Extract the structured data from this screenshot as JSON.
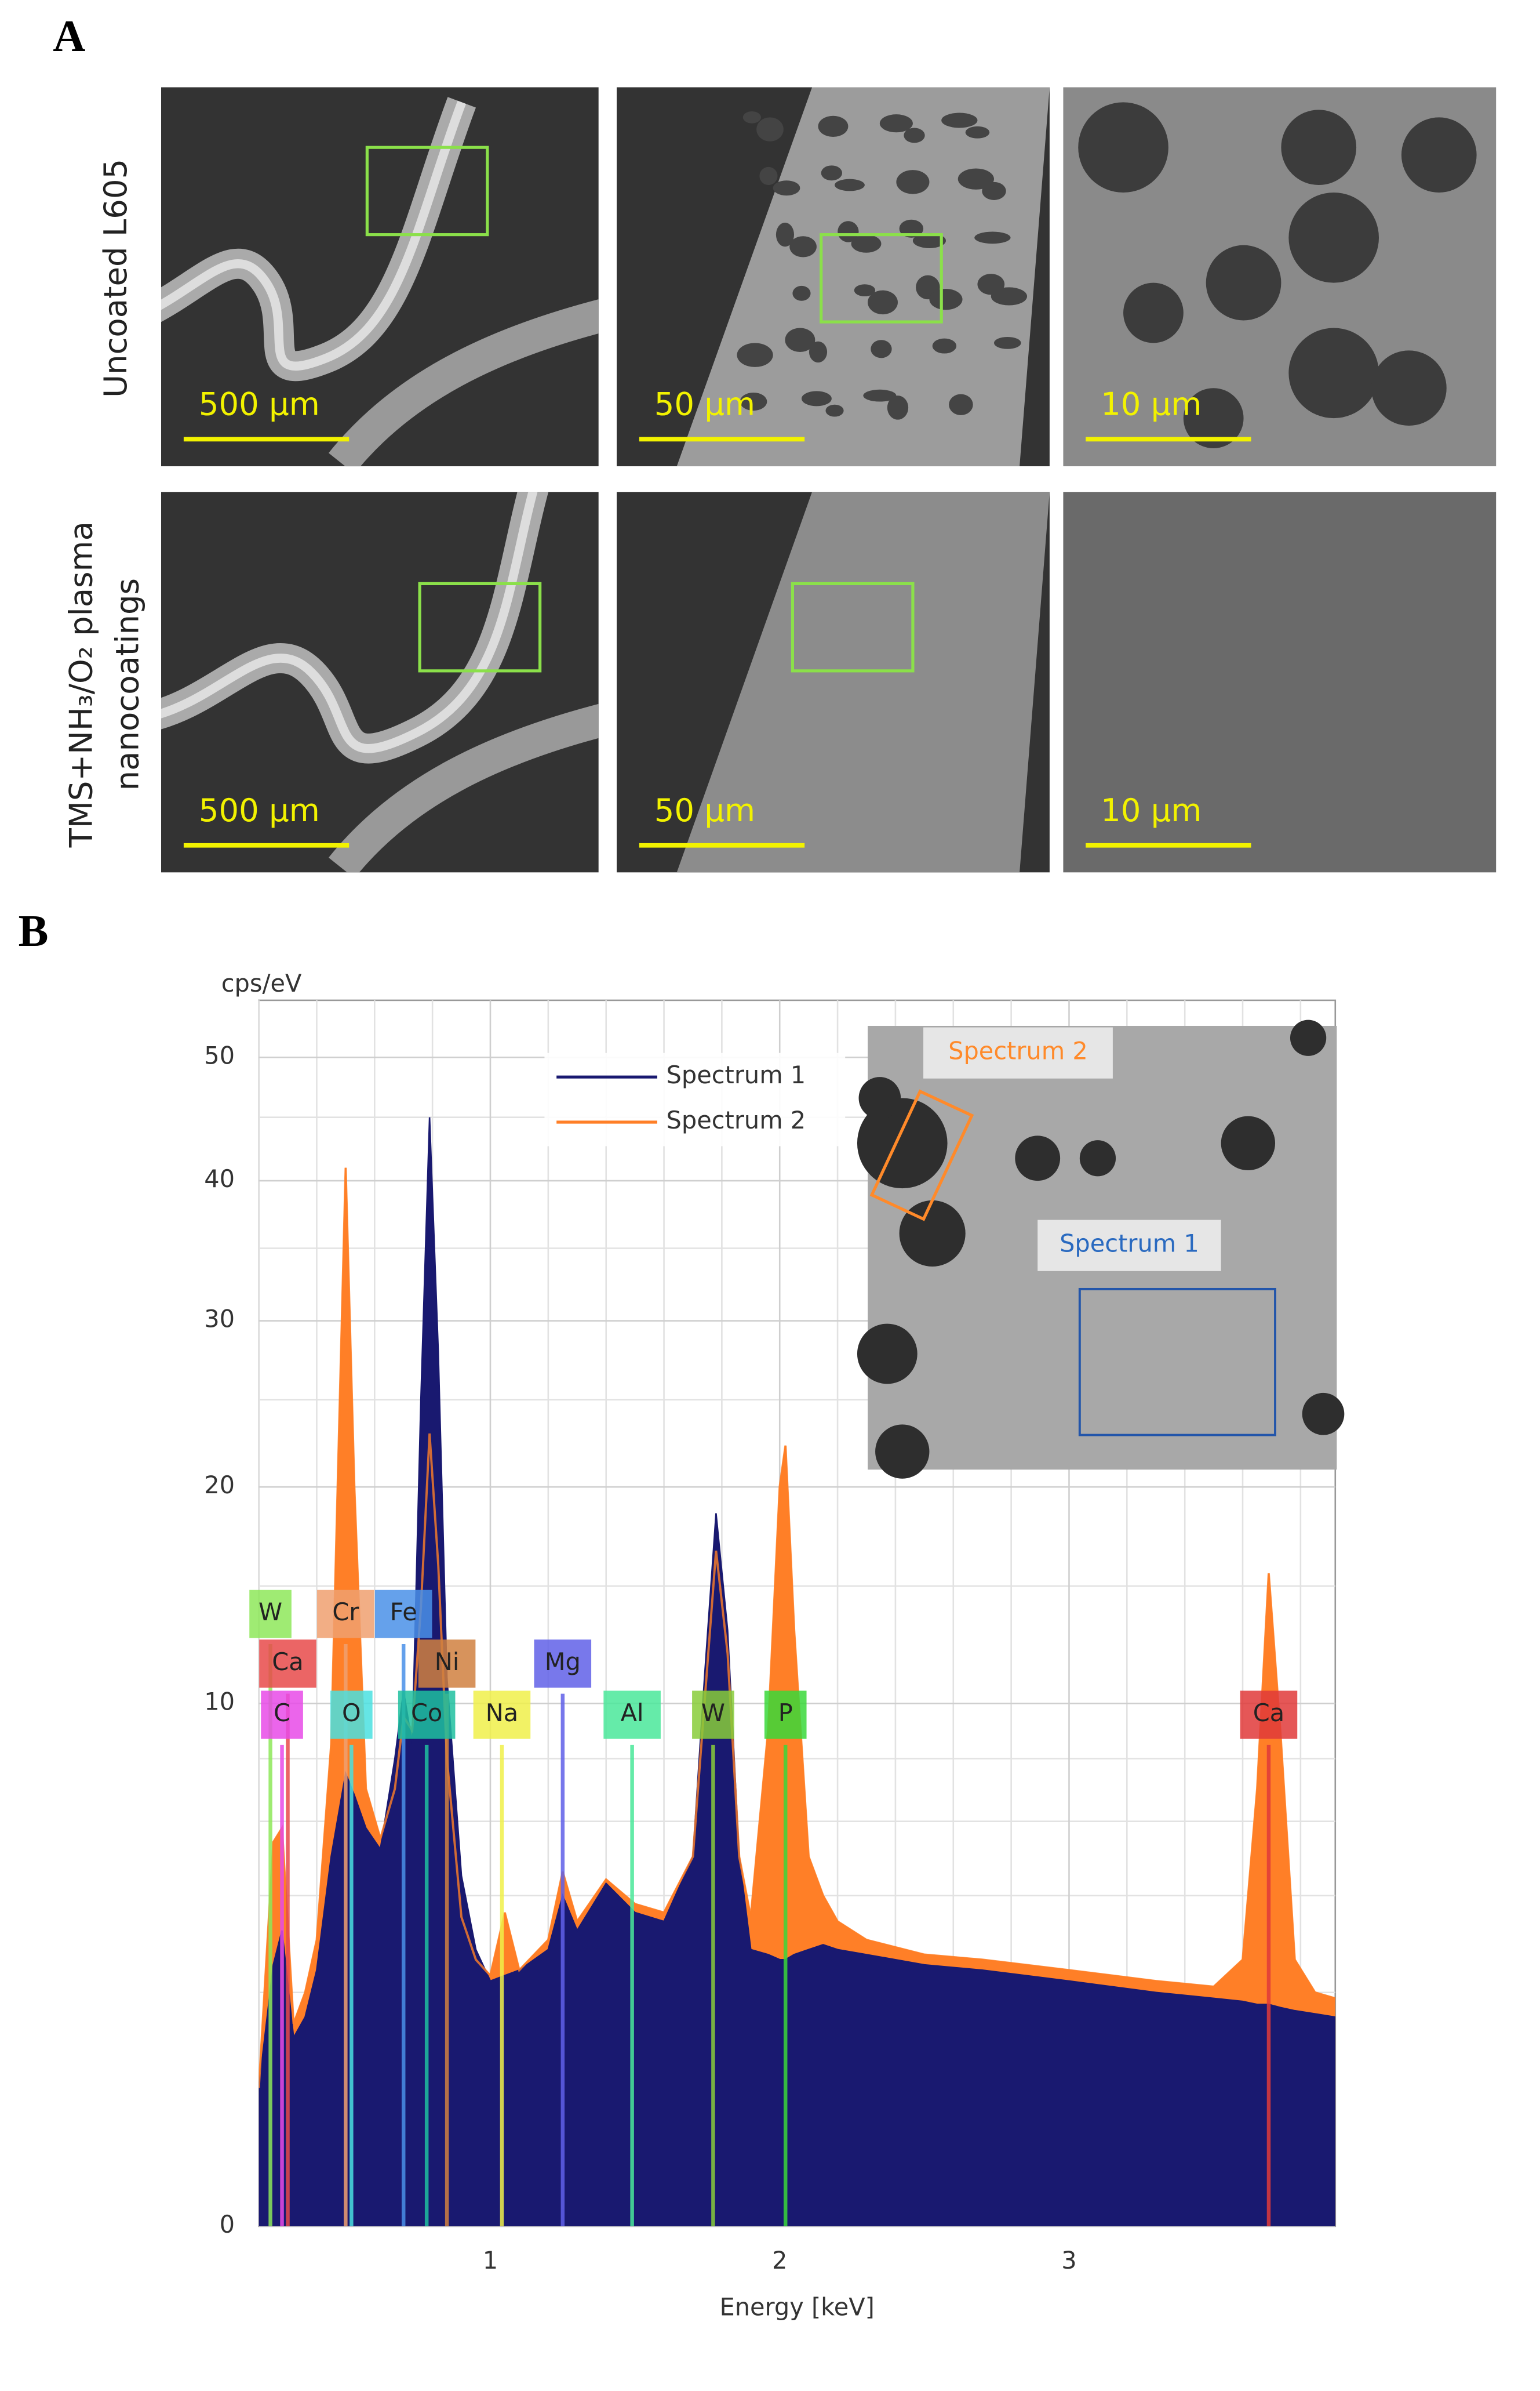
{
  "panel_a": {
    "letter": "A",
    "row_labels": [
      [
        "Uncoated L605"
      ],
      [
        "TMS+NH₃/O₂ plasma",
        "nanocoatings"
      ]
    ],
    "scale_bars": [
      [
        "500 µm",
        "50 µm",
        "10 µm"
      ],
      [
        "500 µm",
        "50 µm",
        "10 µm"
      ]
    ]
  },
  "panel_b": {
    "letter": "B"
  },
  "inset": {
    "labels": [
      "Spectrum 2",
      "Spectrum 1"
    ]
  },
  "chart_data": {
    "type": "area",
    "y_label": "cps/eV",
    "x_label": "Energy [keV]",
    "x": [
      0.2,
      0.25,
      0.28,
      0.32,
      0.36,
      0.4,
      0.45,
      0.5,
      0.53,
      0.57,
      0.62,
      0.67,
      0.7,
      0.73,
      0.76,
      0.79,
      0.82,
      0.85,
      0.9,
      0.95,
      1.0,
      1.05,
      1.1,
      1.2,
      1.25,
      1.3,
      1.4,
      1.5,
      1.6,
      1.7,
      1.74,
      1.78,
      1.82,
      1.86,
      1.9,
      1.96,
      2.0,
      2.02,
      2.05,
      2.1,
      2.15,
      2.2,
      2.3,
      2.5,
      2.7,
      3.0,
      3.3,
      3.5,
      3.6,
      3.65,
      3.69,
      3.73,
      3.78,
      3.85,
      3.92
    ],
    "series": [
      {
        "name": "Spectrum 1",
        "color": "#191970",
        "values": [
          0.7,
          2.5,
          3.2,
          1.3,
          1.6,
          2.4,
          5,
          7.5,
          6.8,
          5.8,
          5.2,
          8,
          10.5,
          8.5,
          25,
          45,
          28,
          11,
          4.5,
          2.8,
          2.2,
          2.3,
          2.4,
          2.8,
          4.0,
          3.2,
          4.3,
          3.6,
          3.4,
          5,
          11,
          18.6,
          13,
          5,
          2.8,
          2.7,
          2.6,
          2.6,
          2.7,
          2.8,
          2.9,
          2.8,
          2.7,
          2.5,
          2.4,
          2.2,
          2.0,
          1.9,
          1.85,
          1.8,
          1.8,
          1.75,
          1.7,
          1.65,
          1.6
        ]
      },
      {
        "name": "Spectrum 2",
        "color": "#ff7f27",
        "values": [
          0.7,
          5.4,
          5.8,
          1.5,
          2.0,
          3.0,
          8.5,
          41,
          20,
          7,
          5.5,
          7,
          9.5,
          9,
          14,
          23,
          16,
          8,
          3.5,
          2.6,
          2.3,
          3.6,
          2.4,
          3.0,
          4.6,
          3.4,
          4.4,
          3.8,
          3.6,
          5,
          10,
          16.7,
          12,
          5,
          3.5,
          9,
          20,
          22.3,
          13,
          5,
          4,
          3.4,
          3.0,
          2.7,
          2.6,
          2.4,
          2.2,
          2.1,
          2.6,
          7,
          15.6,
          9,
          2.6,
          2.0,
          1.9
        ]
      }
    ],
    "xlim": [
      0.2,
      3.92
    ],
    "xticks": [
      1,
      2,
      3
    ],
    "xminorticks": [
      0.2,
      0.4,
      0.6,
      0.8,
      1.2,
      1.4,
      1.6,
      1.8,
      2.2,
      2.4,
      2.6,
      2.8,
      3.2,
      3.4,
      3.6,
      3.8
    ],
    "ylim": [
      0,
      55
    ],
    "yticks": [
      0,
      10,
      20,
      30,
      40,
      50
    ],
    "yminorticks": [
      2,
      4,
      6,
      8,
      15,
      25,
      35,
      45
    ],
    "yscale": "sqrt",
    "grid": true,
    "legend": "upper center",
    "element_labels": [
      {
        "label": "W",
        "x": 0.24,
        "color": "#8ee85a"
      },
      {
        "label": "Cr",
        "x": 0.5,
        "color": "#f0a070"
      },
      {
        "label": "Fe",
        "x": 0.7,
        "color": "#4a90e8"
      },
      {
        "label": "Ca",
        "x": 0.3,
        "color": "#e84a4a"
      },
      {
        "label": "Ni",
        "x": 0.85,
        "color": "#d08040"
      },
      {
        "label": "Mg",
        "x": 1.25,
        "color": "#6060e8"
      },
      {
        "label": "C",
        "x": 0.28,
        "color": "#e84ae8"
      },
      {
        "label": "O",
        "x": 0.52,
        "color": "#4ae0e0"
      },
      {
        "label": "Co",
        "x": 0.78,
        "color": "#1fbf9f"
      },
      {
        "label": "Na",
        "x": 1.04,
        "color": "#f0f04a"
      },
      {
        "label": "Al",
        "x": 1.49,
        "color": "#4ae89a"
      },
      {
        "label": "W",
        "x": 1.77,
        "color": "#88cc3a"
      },
      {
        "label": "P",
        "x": 2.02,
        "color": "#3ad83a"
      },
      {
        "label": "Ca",
        "x": 3.69,
        "color": "#e03a3a"
      }
    ]
  }
}
